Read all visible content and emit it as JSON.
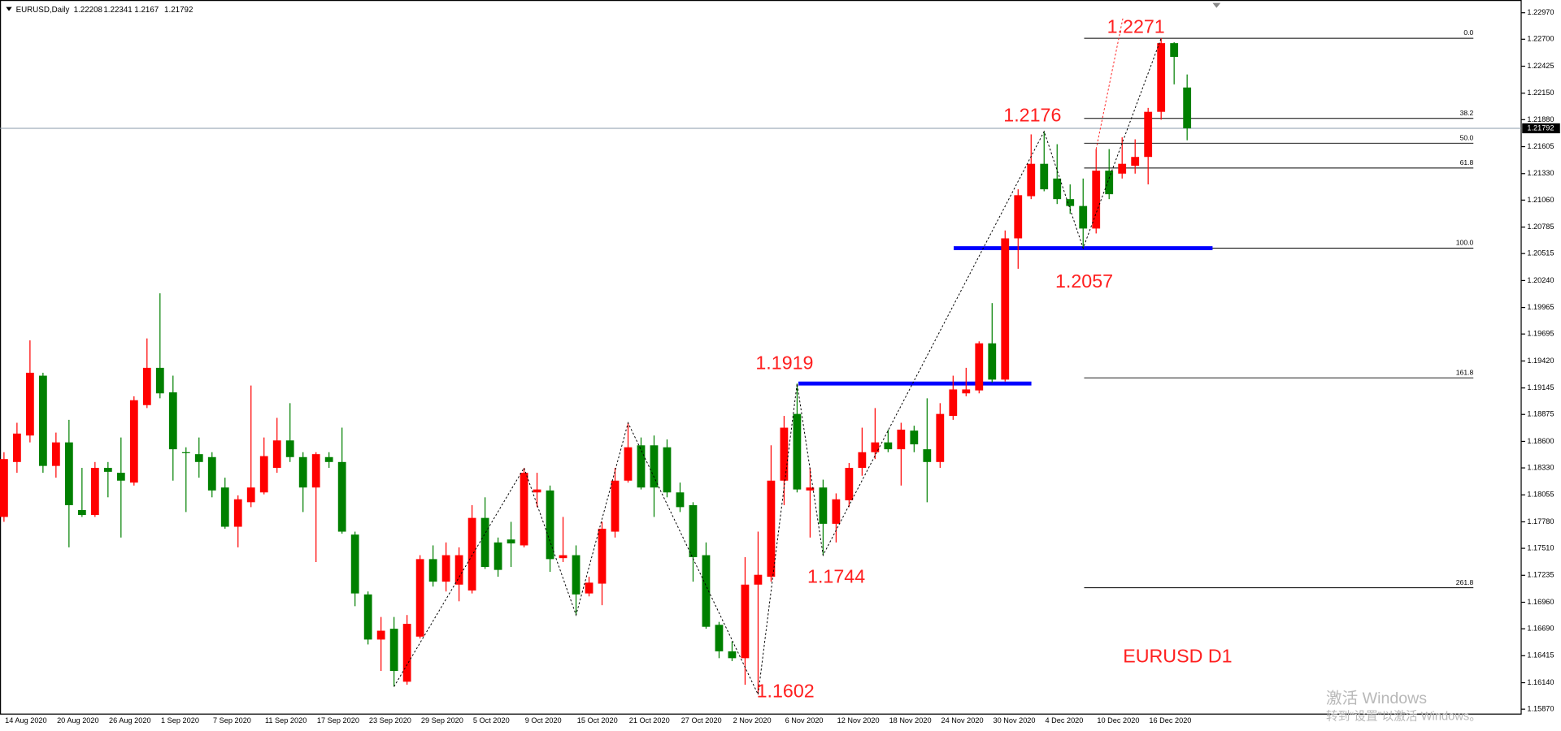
{
  "chart_data": {
    "type": "candlestick",
    "symbol": "EURUSD,Daily",
    "chart_label": "EURUSD D1",
    "up_color": "#ff0000",
    "down_color": "#008000",
    "categories": [
      "14 Aug 2020",
      null,
      null,
      null,
      "20 Aug 2020",
      null,
      null,
      null,
      "26 Aug 2020",
      null,
      null,
      null,
      "1 Sep 2020",
      null,
      null,
      null,
      "7 Sep 2020",
      null,
      null,
      null,
      "11 Sep 2020",
      null,
      null,
      null,
      "17 Sep 2020",
      null,
      null,
      null,
      "23 Sep 2020",
      null,
      null,
      null,
      "29 Sep 2020",
      null,
      null,
      null,
      "5 Oct 2020",
      null,
      null,
      null,
      "9 Oct 2020",
      null,
      null,
      null,
      "15 Oct 2020",
      null,
      null,
      null,
      "21 Oct 2020",
      null,
      null,
      null,
      "27 Oct 2020",
      null,
      null,
      null,
      "2 Nov 2020",
      null,
      null,
      null,
      "6 Nov 2020",
      null,
      null,
      null,
      "12 Nov 2020",
      null,
      null,
      null,
      "18 Nov 2020",
      null,
      null,
      null,
      "24 Nov 2020",
      null,
      null,
      null,
      "30 Nov 2020",
      null,
      null,
      null,
      "4 Dec 2020",
      null,
      null,
      null,
      "10 Dec 2020",
      null,
      null,
      null,
      "16 Dec 2020",
      null,
      null,
      null
    ],
    "open": [
      1.1783,
      1.1839,
      1.1866,
      1.1927,
      1.1835,
      1.1859,
      1.179,
      1.1785,
      1.1833,
      1.1828,
      1.1818,
      1.1897,
      1.1935,
      1.191,
      1.1849,
      1.1847,
      1.1844,
      1.1813,
      1.1773,
      1.1798,
      1.1808,
      1.1833,
      1.1861,
      1.1844,
      1.1813,
      1.1844,
      1.1839,
      1.1765,
      1.1704,
      1.1658,
      1.1669,
      1.1615,
      1.1661,
      1.174,
      1.1717,
      1.1714,
      1.1708,
      1.1782,
      1.1757,
      1.176,
      1.1754,
      1.1808,
      1.181,
      1.1741,
      1.1744,
      1.1705,
      1.1715,
      1.1768,
      1.182,
      1.1856,
      1.1856,
      1.1854,
      1.1808,
      1.1795,
      1.1744,
      1.1673,
      1.1646,
      1.1639,
      1.1714,
      1.1722,
      1.182,
      1.1888,
      1.181,
      1.1813,
      1.1776,
      1.18,
      1.1833,
      1.1849,
      1.1859,
      1.1852,
      1.1871,
      1.1852,
      1.1839,
      1.1886,
      1.1909,
      1.1912,
      1.196,
      1.1923,
      1.2067,
      1.211,
      1.2143,
      1.2128,
      1.2107,
      1.21,
      1.2077,
      1.2136,
      1.2133,
      1.2141,
      1.215,
      1.2196,
      1.2266,
      1.22208
    ],
    "high": [
      1.1849,
      1.1879,
      1.1963,
      1.193,
      1.1869,
      1.1882,
      1.1833,
      1.1839,
      1.1839,
      1.1864,
      1.1906,
      1.1965,
      1.2011,
      1.1927,
      1.1854,
      1.1864,
      1.1849,
      1.1823,
      1.1805,
      1.1917,
      1.1864,
      1.1884,
      1.1899,
      1.1849,
      1.1849,
      1.1849,
      1.1874,
      1.1768,
      1.1707,
      1.1681,
      1.1681,
      1.1683,
      1.1744,
      1.1754,
      1.1757,
      1.1752,
      1.1795,
      1.1803,
      1.1762,
      1.1778,
      1.1833,
      1.1828,
      1.1815,
      1.1783,
      1.1754,
      1.1722,
      1.1778,
      1.1833,
      1.1879,
      1.1864,
      1.1866,
      1.1862,
      1.1818,
      1.1798,
      1.1757,
      1.1676,
      1.1656,
      1.1742,
      1.1768,
      1.1856,
      1.1886,
      1.1919,
      1.1833,
      1.1821,
      1.1807,
      1.1838,
      1.1874,
      1.1894,
      1.1872,
      1.1879,
      1.1876,
      1.1904,
      1.1899,
      1.1927,
      1.1935,
      1.1962,
      1.2001,
      1.2075,
      1.2117,
      1.2173,
      1.2176,
      1.2163,
      1.2122,
      1.2128,
      1.2158,
      1.2158,
      1.217,
      1.2168,
      1.22,
      1.2271,
      1.2267,
      1.22341
    ],
    "low": [
      1.1778,
      1.1828,
      1.1859,
      1.1828,
      1.1823,
      1.1752,
      1.1783,
      1.1783,
      1.1803,
      1.1762,
      1.1815,
      1.1894,
      1.1904,
      1.182,
      1.1788,
      1.1823,
      1.1803,
      1.1771,
      1.1752,
      1.1793,
      1.1806,
      1.1828,
      1.1839,
      1.1788,
      1.1737,
      1.1833,
      1.1766,
      1.1692,
      1.1653,
      1.1626,
      1.161,
      1.1612,
      1.1659,
      1.1712,
      1.1707,
      1.1697,
      1.1705,
      1.173,
      1.1722,
      1.1732,
      1.1752,
      1.1793,
      1.1727,
      1.1737,
      1.1683,
      1.1702,
      1.1693,
      1.1762,
      1.1818,
      1.1811,
      1.1783,
      1.1803,
      1.1788,
      1.1717,
      1.1669,
      1.1639,
      1.1636,
      1.1612,
      1.1602,
      1.1717,
      1.1795,
      1.1808,
      1.1762,
      1.1744,
      1.1757,
      1.1793,
      1.1825,
      1.1842,
      1.1849,
      1.1815,
      1.1849,
      1.1798,
      1.1833,
      1.1882,
      1.1906,
      1.1909,
      1.192,
      1.1921,
      1.2036,
      1.2107,
      1.2115,
      1.2102,
      1.2092,
      1.2057,
      1.2072,
      1.2107,
      1.2128,
      1.2133,
      1.2122,
      1.2188,
      1.2224,
      1.2167
    ],
    "close": [
      1.1842,
      1.1868,
      1.193,
      1.1835,
      1.1859,
      1.1795,
      1.1785,
      1.1833,
      1.1829,
      1.182,
      1.1902,
      1.1935,
      1.1909,
      1.1852,
      1.1848,
      1.1839,
      1.181,
      1.1773,
      1.1801,
      1.1813,
      1.1845,
      1.1861,
      1.1844,
      1.1813,
      1.1847,
      1.1839,
      1.1768,
      1.1705,
      1.1658,
      1.1667,
      1.1626,
      1.1674,
      1.174,
      1.1717,
      1.1744,
      1.1744,
      1.1782,
      1.1732,
      1.1729,
      1.1756,
      1.1828,
      1.1811,
      1.174,
      1.1744,
      1.1704,
      1.1716,
      1.1771,
      1.182,
      1.1854,
      1.1813,
      1.1813,
      1.1808,
      1.1793,
      1.1742,
      1.1671,
      1.1646,
      1.1639,
      1.1714,
      1.1724,
      1.182,
      1.1874,
      1.1811,
      1.1813,
      1.1776,
      1.1801,
      1.1833,
      1.1849,
      1.1859,
      1.1852,
      1.1872,
      1.1857,
      1.1839,
      1.1888,
      1.1913,
      1.1913,
      1.196,
      1.1923,
      1.2067,
      1.2111,
      1.2143,
      1.2117,
      1.2107,
      1.21,
      1.2077,
      1.2136,
      1.2112,
      1.2143,
      1.215,
      1.2196,
      1.2266,
      1.2252,
      1.21792
    ],
    "ylim": [
      1.1582,
      1.231
    ],
    "yticks": [
      {
        "value": 1.2297,
        "label": "1.22970"
      },
      {
        "value": 1.227,
        "label": "1.22700"
      },
      1.22425,
      {
        "value": 1.2215,
        "label": "1.22150"
      },
      {
        "value": 1.2188,
        "label": "1.21880"
      },
      1.21605,
      {
        "value": 1.2133,
        "label": "1.21330"
      },
      {
        "value": 1.2106,
        "label": "1.21060"
      },
      1.20785,
      1.20515,
      {
        "value": 1.2024,
        "label": "1.20240"
      },
      1.19965,
      1.19695,
      {
        "value": 1.1942,
        "label": "1.19420"
      },
      1.19145,
      1.18875,
      {
        "value": 1.186,
        "label": "1.18600"
      },
      {
        "value": 1.1833,
        "label": "1.18330"
      },
      1.18055,
      {
        "value": 1.1778,
        "label": "1.17780"
      },
      {
        "value": 1.1751,
        "label": "1.17510"
      },
      1.17235,
      {
        "value": 1.1696,
        "label": "1.16960"
      },
      {
        "value": 1.1669,
        "label": "1.16690"
      },
      1.16415,
      {
        "value": 1.1614,
        "label": "1.16140"
      },
      {
        "value": 1.1587,
        "label": "1.15870"
      }
    ],
    "fibonacci": [
      {
        "level": {
          "value": 0,
          "label": "0.0"
        },
        "price": 1.2271
      },
      {
        "level": 38.2,
        "price": 1.21893
      },
      {
        "level": {
          "value": 50,
          "label": "50.0"
        },
        "price": 1.2164
      },
      {
        "level": 61.8,
        "price": 1.21387
      },
      {
        "level": {
          "value": 100,
          "label": "100.0"
        },
        "price": 1.2057
      },
      {
        "level": 161.8,
        "price": 1.19248
      },
      {
        "level": 261.8,
        "price": 1.17108
      }
    ],
    "annotations": [
      1.2271,
      1.2176,
      1.2057,
      1.1919,
      1.1744,
      1.1602
    ],
    "watermark": [
      "激活 Windows",
      "转到“设置”以激活 Windows。"
    ]
  }
}
